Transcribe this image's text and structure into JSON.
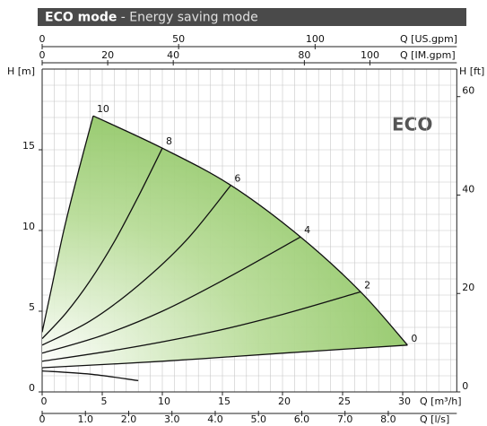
{
  "chart_data": {
    "type": "line",
    "title_bold": "ECO mode",
    "title_rest": "- Energy saving mode",
    "annotation": "ECO",
    "xlabel": "Q [m³/h]",
    "ylabel": "H [m]",
    "y2label": "H [ft]",
    "xlim": [
      0,
      34.5
    ],
    "xticks": [
      0,
      5,
      10,
      15,
      20,
      25,
      30
    ],
    "ylim": [
      0,
      20
    ],
    "yticks": [
      0,
      5,
      10,
      15
    ],
    "y2lim": [
      0,
      65.6
    ],
    "y2ticks": [
      0,
      20,
      40,
      60
    ],
    "x_us": {
      "label": "Q [US.gpm]",
      "lim": [
        0,
        151.9
      ],
      "ticks": [
        0,
        50,
        100
      ]
    },
    "x_im": {
      "label": "Q [IM.gpm]",
      "lim": [
        0,
        126.5
      ],
      "ticks": [
        0,
        20,
        40,
        80,
        100
      ]
    },
    "x_ls": {
      "label": "Q [l/s]",
      "lim": [
        0,
        9.583
      ],
      "ticks": [
        0,
        {
          "value": 1,
          "label": "1.0"
        },
        {
          "value": 2,
          "label": "2.0"
        },
        {
          "value": 3,
          "label": "3.0"
        },
        {
          "value": 4,
          "label": "4.0"
        },
        {
          "value": 5,
          "label": "5.0"
        },
        {
          "value": 6,
          "label": "6.0"
        },
        {
          "value": 7,
          "label": "7.0"
        },
        {
          "value": 8,
          "label": "8.0"
        }
      ]
    },
    "grid": true,
    "xgrid_step": 1,
    "ygrid_step": 1,
    "color": "#111111",
    "fill_color": "#8cc460",
    "series": [
      {
        "name": "10",
        "x": [
          0,
          0.8,
          1.8,
          3.0,
          4.25
        ],
        "values": [
          3.7,
          6.5,
          10.0,
          13.6,
          17.1
        ]
      },
      {
        "name": "8",
        "x": [
          0,
          2,
          4,
          6,
          8,
          10
        ],
        "values": [
          3.3,
          4.9,
          6.9,
          9.3,
          12.1,
          15.1
        ]
      },
      {
        "name": "6",
        "x": [
          0,
          4,
          8,
          12,
          15.7
        ],
        "values": [
          2.9,
          4.4,
          6.6,
          9.4,
          12.8
        ]
      },
      {
        "name": "4",
        "x": [
          0,
          5,
          10,
          15,
          21.5
        ],
        "values": [
          2.4,
          3.5,
          5.0,
          6.9,
          9.6
        ]
      },
      {
        "name": "2",
        "x": [
          0,
          7,
          14,
          20,
          26.5
        ],
        "values": [
          1.9,
          2.7,
          3.7,
          4.8,
          6.2
        ]
      },
      {
        "name": "0",
        "x": [
          0,
          10,
          20,
          30.4
        ],
        "values": [
          1.5,
          1.9,
          2.4,
          2.9
        ]
      },
      {
        "x": [
          4.25,
          10,
          15.7,
          21.5,
          26.5,
          30.4
        ],
        "values": [
          17.1,
          15.1,
          12.8,
          9.6,
          6.2,
          2.9
        ]
      },
      {
        "x": [
          0,
          4,
          8
        ],
        "values": [
          1.3,
          1.1,
          0.7
        ]
      }
    ]
  }
}
